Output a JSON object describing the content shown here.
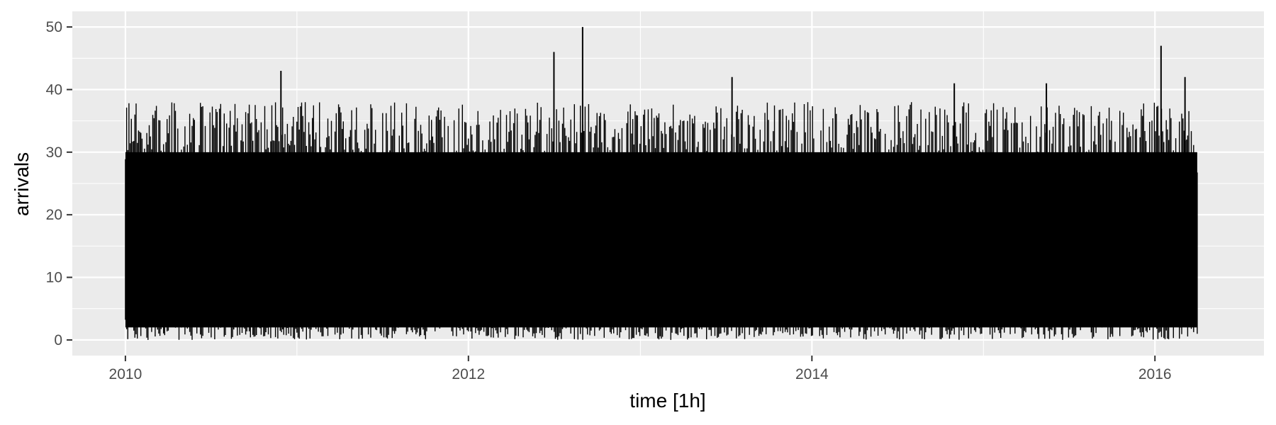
{
  "chart_data": {
    "type": "line",
    "title": "",
    "xlabel": "time [1h]",
    "ylabel": "arrivals",
    "x_ticks": [
      "2010",
      "2012",
      "2014",
      "2016"
    ],
    "y_ticks": [
      "0",
      "10",
      "20",
      "30",
      "40",
      "50"
    ],
    "xlim": [
      "2009-09-10",
      "2016-08-20"
    ],
    "ylim": [
      -2.5,
      52.5
    ],
    "x_range": [
      "2010-01-01",
      "2016-03-31"
    ],
    "y_range_observed": [
      0,
      50
    ],
    "typical_band": [
      2,
      30
    ],
    "series": [
      {
        "color": "#000000",
        "interval": "1h",
        "notable_points": [
          {
            "x": "2012-07-01",
            "y": 46
          },
          {
            "x": "2012-08-31",
            "y": 50
          },
          {
            "x": "2010-11-28",
            "y": 43
          },
          {
            "x": "2016-01-14",
            "y": 47
          },
          {
            "x": "2016-03-05",
            "y": 42
          },
          {
            "x": "2013-07-15",
            "y": 42
          },
          {
            "x": "2014-10-31",
            "y": 41
          },
          {
            "x": "2015-05-15",
            "y": 41
          }
        ]
      }
    ],
    "grid": true,
    "legend": "none",
    "panel_background": "#ebebeb",
    "gridline_color": "#ffffff"
  }
}
